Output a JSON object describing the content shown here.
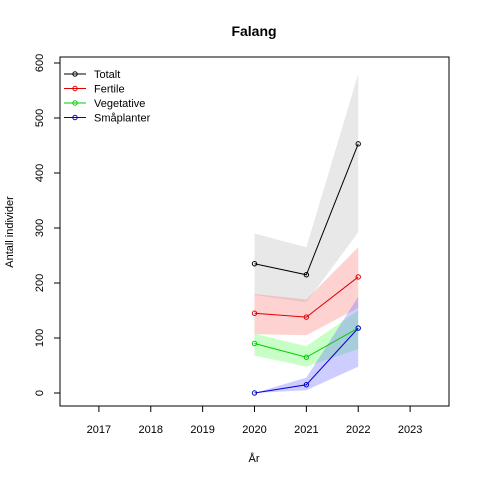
{
  "chart_data": {
    "type": "line",
    "title": "Falang",
    "xlabel": "År",
    "ylabel": "Antall individer",
    "x": [
      2017,
      2018,
      2019,
      2020,
      2021,
      2022,
      2023
    ],
    "xlim": [
      2016.25,
      2023.75
    ],
    "ylim": [
      -25,
      615
    ],
    "y_ticks": [
      0,
      100,
      200,
      300,
      400,
      500,
      600
    ],
    "legend_position": "top-left",
    "series": [
      {
        "name": "Totalt",
        "color": "#000000",
        "band_color": "#bebebe",
        "points": [
          [
            2020,
            235
          ],
          [
            2021,
            215
          ],
          [
            2022,
            453
          ]
        ],
        "lower": [
          178,
          165,
          292
        ],
        "upper": [
          290,
          265,
          580
        ]
      },
      {
        "name": "Fertile",
        "color": "#df0000",
        "band_color": "#ff7f7f",
        "points": [
          [
            2020,
            145
          ],
          [
            2021,
            138
          ],
          [
            2022,
            211
          ]
        ],
        "lower": [
          107,
          105,
          155
        ],
        "upper": [
          180,
          170,
          265
        ]
      },
      {
        "name": "Vegetative",
        "color": "#00cd00",
        "band_color": "#5fff5f",
        "points": [
          [
            2020,
            90
          ],
          [
            2021,
            65
          ],
          [
            2022,
            118
          ]
        ],
        "lower": [
          68,
          48,
          80
        ],
        "upper": [
          108,
          85,
          150
        ]
      },
      {
        "name": "Småplanter",
        "color": "#0000cd",
        "band_color": "#6f6fff",
        "points": [
          [
            2020,
            0
          ],
          [
            2021,
            15
          ],
          [
            2022,
            118
          ]
        ],
        "lower": [
          0,
          5,
          48
        ],
        "upper": [
          0,
          28,
          175
        ]
      }
    ]
  }
}
